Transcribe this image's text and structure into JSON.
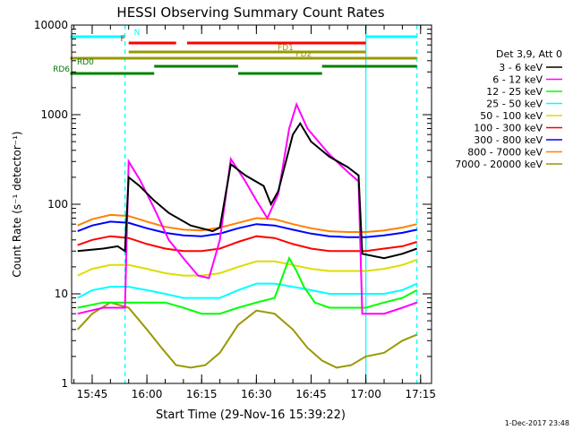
{
  "page": {
    "title": "HESSI Observing Summary Count Rates",
    "footer_date": "1-Dec-2017 23:48"
  },
  "chart_data": {
    "type": "line",
    "title": "HESSI Observing Summary Count Rates",
    "xlabel": "Start Time (29-Nov-16 15:39:22)",
    "ylabel": "Count Rate (s⁻¹ detector⁻¹)",
    "yscale": "log",
    "ylim": [
      1,
      10000
    ],
    "xlim": [
      "15:39:22",
      "17:18:00"
    ],
    "x_ticks": [
      "15:45",
      "16:00",
      "16:15",
      "16:30",
      "16:45",
      "17:00",
      "17:15"
    ],
    "y_ticks": [
      "1",
      "10",
      "100",
      "1000",
      "10000"
    ],
    "legend_title": "Det 3,9, Att 0",
    "legend_position": "right",
    "series": [
      {
        "name": "3 - 6 keV",
        "color": "#000000",
        "points": [
          [
            "15:41",
            30
          ],
          [
            "15:48",
            32
          ],
          [
            "15:52",
            34
          ],
          [
            "15:54",
            30
          ],
          [
            "15:55",
            200
          ],
          [
            "15:58",
            160
          ],
          [
            "16:02",
            110
          ],
          [
            "16:06",
            80
          ],
          [
            "16:12",
            58
          ],
          [
            "16:18",
            50
          ],
          [
            "16:20",
            55
          ],
          [
            "16:23",
            280
          ],
          [
            "16:27",
            210
          ],
          [
            "16:32",
            160
          ],
          [
            "16:34",
            100
          ],
          [
            "16:36",
            140
          ],
          [
            "16:40",
            600
          ],
          [
            "16:42",
            800
          ],
          [
            "16:45",
            500
          ],
          [
            "16:50",
            340
          ],
          [
            "16:55",
            260
          ],
          [
            "16:58",
            210
          ],
          [
            "16:59",
            28
          ],
          [
            "17:05",
            25
          ],
          [
            "17:10",
            28
          ],
          [
            "17:14",
            32
          ]
        ]
      },
      {
        "name": "6 - 12 keV",
        "color": "#ff00ff",
        "points": [
          [
            "15:41",
            6
          ],
          [
            "15:48",
            7
          ],
          [
            "15:52",
            7
          ],
          [
            "15:54",
            7
          ],
          [
            "15:55",
            300
          ],
          [
            "15:58",
            190
          ],
          [
            "16:02",
            90
          ],
          [
            "16:06",
            40
          ],
          [
            "16:10",
            25
          ],
          [
            "16:14",
            16
          ],
          [
            "16:17",
            15
          ],
          [
            "16:20",
            40
          ],
          [
            "16:23",
            320
          ],
          [
            "16:27",
            180
          ],
          [
            "16:30",
            110
          ],
          [
            "16:33",
            70
          ],
          [
            "16:36",
            130
          ],
          [
            "16:39",
            700
          ],
          [
            "16:41",
            1300
          ],
          [
            "16:44",
            700
          ],
          [
            "16:50",
            360
          ],
          [
            "16:55",
            230
          ],
          [
            "16:58",
            180
          ],
          [
            "16:59",
            6
          ],
          [
            "17:05",
            6
          ],
          [
            "17:10",
            7
          ],
          [
            "17:14",
            8
          ]
        ]
      },
      {
        "name": "12 - 25 keV",
        "color": "#00ff00",
        "points": [
          [
            "15:41",
            7
          ],
          [
            "15:48",
            8
          ],
          [
            "15:52",
            8
          ],
          [
            "15:56",
            8
          ],
          [
            "16:00",
            8
          ],
          [
            "16:05",
            8
          ],
          [
            "16:10",
            7
          ],
          [
            "16:15",
            6
          ],
          [
            "16:20",
            6
          ],
          [
            "16:25",
            7
          ],
          [
            "16:30",
            8
          ],
          [
            "16:35",
            9
          ],
          [
            "16:39",
            25
          ],
          [
            "16:41",
            18
          ],
          [
            "16:43",
            12
          ],
          [
            "16:46",
            8
          ],
          [
            "16:50",
            7
          ],
          [
            "16:55",
            7
          ],
          [
            "17:00",
            7
          ],
          [
            "17:05",
            8
          ],
          [
            "17:10",
            9
          ],
          [
            "17:14",
            11
          ]
        ]
      },
      {
        "name": "25 - 50 keV",
        "color": "#00ffff",
        "points": [
          [
            "15:41",
            9
          ],
          [
            "15:45",
            11
          ],
          [
            "15:50",
            12
          ],
          [
            "15:55",
            12
          ],
          [
            "16:00",
            11
          ],
          [
            "16:05",
            10
          ],
          [
            "16:10",
            9
          ],
          [
            "16:15",
            9
          ],
          [
            "16:20",
            9
          ],
          [
            "16:25",
            11
          ],
          [
            "16:30",
            13
          ],
          [
            "16:35",
            13
          ],
          [
            "16:40",
            12
          ],
          [
            "16:45",
            11
          ],
          [
            "16:50",
            10
          ],
          [
            "16:55",
            10
          ],
          [
            "17:00",
            10
          ],
          [
            "17:05",
            10
          ],
          [
            "17:10",
            11
          ],
          [
            "17:14",
            13
          ]
        ]
      },
      {
        "name": "50 - 100 keV",
        "color": "#dddd00",
        "points": [
          [
            "15:41",
            16
          ],
          [
            "15:45",
            19
          ],
          [
            "15:50",
            21
          ],
          [
            "15:55",
            21
          ],
          [
            "16:00",
            19
          ],
          [
            "16:05",
            17
          ],
          [
            "16:10",
            16
          ],
          [
            "16:15",
            16
          ],
          [
            "16:20",
            17
          ],
          [
            "16:25",
            20
          ],
          [
            "16:30",
            23
          ],
          [
            "16:35",
            23
          ],
          [
            "16:40",
            21
          ],
          [
            "16:45",
            19
          ],
          [
            "16:50",
            18
          ],
          [
            "16:55",
            18
          ],
          [
            "17:00",
            18
          ],
          [
            "17:05",
            19
          ],
          [
            "17:10",
            21
          ],
          [
            "17:14",
            24
          ]
        ]
      },
      {
        "name": "100 - 300 keV",
        "color": "#ff0000",
        "points": [
          [
            "15:41",
            35
          ],
          [
            "15:45",
            40
          ],
          [
            "15:50",
            44
          ],
          [
            "15:55",
            42
          ],
          [
            "16:00",
            36
          ],
          [
            "16:05",
            32
          ],
          [
            "16:10",
            30
          ],
          [
            "16:15",
            30
          ],
          [
            "16:20",
            32
          ],
          [
            "16:25",
            38
          ],
          [
            "16:30",
            44
          ],
          [
            "16:35",
            42
          ],
          [
            "16:40",
            36
          ],
          [
            "16:45",
            32
          ],
          [
            "16:50",
            30
          ],
          [
            "16:55",
            30
          ],
          [
            "17:00",
            30
          ],
          [
            "17:05",
            32
          ],
          [
            "17:10",
            34
          ],
          [
            "17:14",
            38
          ]
        ]
      },
      {
        "name": "300 - 800 keV",
        "color": "#0000ff",
        "points": [
          [
            "15:41",
            50
          ],
          [
            "15:45",
            58
          ],
          [
            "15:50",
            64
          ],
          [
            "15:55",
            62
          ],
          [
            "16:00",
            54
          ],
          [
            "16:05",
            48
          ],
          [
            "16:10",
            45
          ],
          [
            "16:15",
            44
          ],
          [
            "16:20",
            47
          ],
          [
            "16:25",
            54
          ],
          [
            "16:30",
            60
          ],
          [
            "16:35",
            58
          ],
          [
            "16:40",
            52
          ],
          [
            "16:45",
            47
          ],
          [
            "16:50",
            44
          ],
          [
            "16:55",
            43
          ],
          [
            "17:00",
            43
          ],
          [
            "17:05",
            45
          ],
          [
            "17:10",
            48
          ],
          [
            "17:14",
            52
          ]
        ]
      },
      {
        "name": "800 - 7000 keV",
        "color": "#ff8000",
        "points": [
          [
            "15:41",
            58
          ],
          [
            "15:45",
            68
          ],
          [
            "15:50",
            76
          ],
          [
            "15:55",
            74
          ],
          [
            "16:00",
            64
          ],
          [
            "16:05",
            56
          ],
          [
            "16:10",
            52
          ],
          [
            "16:15",
            51
          ],
          [
            "16:20",
            55
          ],
          [
            "16:25",
            62
          ],
          [
            "16:30",
            70
          ],
          [
            "16:35",
            68
          ],
          [
            "16:40",
            60
          ],
          [
            "16:45",
            54
          ],
          [
            "16:50",
            50
          ],
          [
            "16:55",
            49
          ],
          [
            "17:00",
            49
          ],
          [
            "17:05",
            51
          ],
          [
            "17:10",
            55
          ],
          [
            "17:14",
            60
          ]
        ]
      },
      {
        "name": "7000 - 20000 keV",
        "color": "#999900",
        "points": [
          [
            "15:41",
            4
          ],
          [
            "15:45",
            6
          ],
          [
            "15:50",
            8
          ],
          [
            "15:55",
            7
          ],
          [
            "16:00",
            4
          ],
          [
            "16:04",
            2.5
          ],
          [
            "16:08",
            1.6
          ],
          [
            "16:12",
            1.5
          ],
          [
            "16:16",
            1.6
          ],
          [
            "16:20",
            2.2
          ],
          [
            "16:25",
            4.5
          ],
          [
            "16:30",
            6.5
          ],
          [
            "16:35",
            6
          ],
          [
            "16:40",
            4
          ],
          [
            "16:44",
            2.5
          ],
          [
            "16:48",
            1.8
          ],
          [
            "16:52",
            1.5
          ],
          [
            "16:56",
            1.6
          ],
          [
            "17:00",
            2
          ],
          [
            "17:05",
            2.2
          ],
          [
            "17:10",
            3
          ],
          [
            "17:14",
            3.5
          ]
        ]
      }
    ],
    "annotations": [
      {
        "label": "N",
        "color": "#00ffff",
        "row": 0,
        "segments": [
          [
            "15:39",
            "15:54"
          ],
          [
            "17:00",
            "17:14"
          ]
        ]
      },
      {
        "label": "F",
        "color": "#ff0000",
        "row": 1,
        "segments": [
          [
            "15:55",
            "16:08"
          ],
          [
            "16:11",
            "17:00"
          ]
        ]
      },
      {
        "label": "FD1",
        "color": "#999900",
        "row": 2,
        "segments": [
          [
            "15:55",
            "17:00"
          ]
        ]
      },
      {
        "label": "FD2",
        "color": "#999900",
        "row": 3,
        "segments": [
          [
            "15:39",
            "17:14"
          ]
        ]
      },
      {
        "label": "RD0",
        "color": "#008000",
        "row": 4,
        "segments": [
          [
            "16:02",
            "16:25"
          ],
          [
            "16:48",
            "17:14"
          ]
        ]
      },
      {
        "label": "RD6",
        "color": "#008000",
        "row": 5,
        "segments": [
          [
            "15:39",
            "16:02"
          ],
          [
            "16:25",
            "16:48"
          ]
        ]
      }
    ],
    "vertical_markers": [
      {
        "time": "15:54",
        "color": "#00ffff",
        "style": "dashed"
      },
      {
        "time": "17:00",
        "color": "#00ffff",
        "style": "solid"
      },
      {
        "time": "17:14",
        "color": "#00ffff",
        "style": "dashed"
      }
    ]
  }
}
